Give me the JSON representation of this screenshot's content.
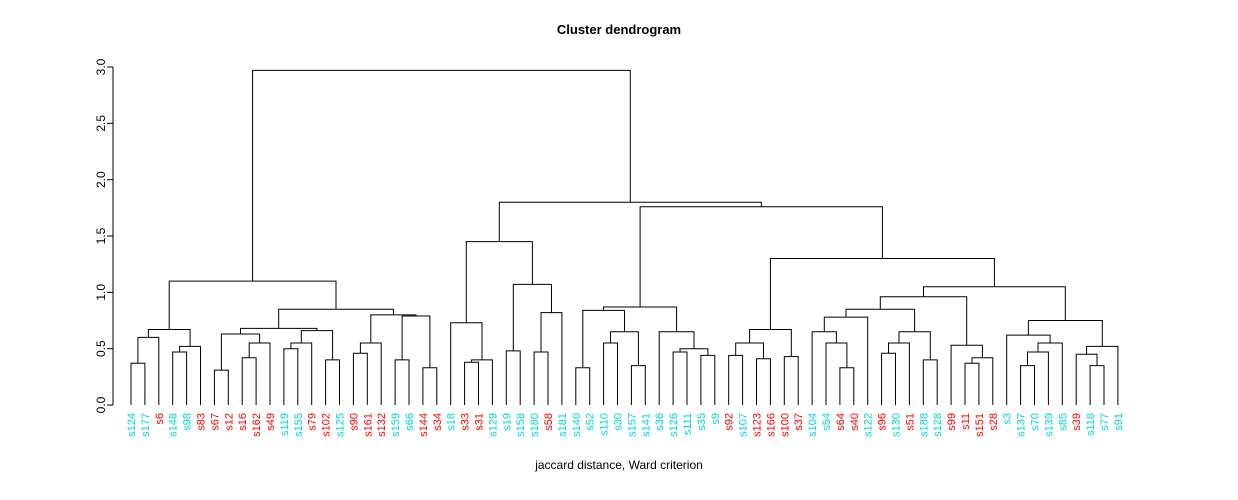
{
  "chart_data": {
    "type": "dendrogram",
    "title": "Cluster dendrogram",
    "xlabel": "jaccard distance, Ward criterion",
    "ylim": [
      0,
      3.0
    ],
    "yticks": [
      0.0,
      0.5,
      1.0,
      1.5,
      2.0,
      2.5,
      3.0
    ],
    "grid": false,
    "line_color": "#000000",
    "leaf_label_colors": {
      "cyan": "#00d5d5",
      "red": "#ff0000"
    },
    "n_leaves": 72,
    "leaves": [
      {
        "label": "s124",
        "color": "cyan"
      },
      {
        "label": "s177",
        "color": "cyan"
      },
      {
        "label": "s6",
        "color": "red"
      },
      {
        "label": "s148",
        "color": "cyan"
      },
      {
        "label": "s98",
        "color": "cyan"
      },
      {
        "label": "s83",
        "color": "red"
      },
      {
        "label": "s67",
        "color": "red"
      },
      {
        "label": "s12",
        "color": "red"
      },
      {
        "label": "s16",
        "color": "red"
      },
      {
        "label": "s162",
        "color": "red"
      },
      {
        "label": "s49",
        "color": "red"
      },
      {
        "label": "s119",
        "color": "cyan"
      },
      {
        "label": "s155",
        "color": "cyan"
      },
      {
        "label": "s79",
        "color": "red"
      },
      {
        "label": "s102",
        "color": "red"
      },
      {
        "label": "s125",
        "color": "cyan"
      },
      {
        "label": "s90",
        "color": "red"
      },
      {
        "label": "s161",
        "color": "red"
      },
      {
        "label": "s132",
        "color": "red"
      },
      {
        "label": "s159",
        "color": "cyan"
      },
      {
        "label": "s66",
        "color": "cyan"
      },
      {
        "label": "s144",
        "color": "red"
      },
      {
        "label": "s34",
        "color": "red"
      },
      {
        "label": "s18",
        "color": "cyan"
      },
      {
        "label": "s33",
        "color": "red"
      },
      {
        "label": "s31",
        "color": "red"
      },
      {
        "label": "s129",
        "color": "cyan"
      },
      {
        "label": "s19",
        "color": "cyan"
      },
      {
        "label": "s158",
        "color": "cyan"
      },
      {
        "label": "s180",
        "color": "cyan"
      },
      {
        "label": "s58",
        "color": "red"
      },
      {
        "label": "s181",
        "color": "cyan"
      },
      {
        "label": "s140",
        "color": "cyan"
      },
      {
        "label": "s52",
        "color": "cyan"
      },
      {
        "label": "s110",
        "color": "cyan"
      },
      {
        "label": "s30",
        "color": "cyan"
      },
      {
        "label": "s157",
        "color": "cyan"
      },
      {
        "label": "s141",
        "color": "cyan"
      },
      {
        "label": "s36",
        "color": "cyan"
      },
      {
        "label": "s126",
        "color": "cyan"
      },
      {
        "label": "s111",
        "color": "cyan"
      },
      {
        "label": "s35",
        "color": "cyan"
      },
      {
        "label": "s9",
        "color": "cyan"
      },
      {
        "label": "s92",
        "color": "red"
      },
      {
        "label": "s107",
        "color": "cyan"
      },
      {
        "label": "s123",
        "color": "red"
      },
      {
        "label": "s166",
        "color": "red"
      },
      {
        "label": "s100",
        "color": "red"
      },
      {
        "label": "s37",
        "color": "red"
      },
      {
        "label": "s104",
        "color": "cyan"
      },
      {
        "label": "s54",
        "color": "cyan"
      },
      {
        "label": "s64",
        "color": "red"
      },
      {
        "label": "s40",
        "color": "red"
      },
      {
        "label": "s122",
        "color": "cyan"
      },
      {
        "label": "s96",
        "color": "red"
      },
      {
        "label": "s130",
        "color": "cyan"
      },
      {
        "label": "s51",
        "color": "red"
      },
      {
        "label": "s188",
        "color": "cyan"
      },
      {
        "label": "s128",
        "color": "cyan"
      },
      {
        "label": "s99",
        "color": "red"
      },
      {
        "label": "s11",
        "color": "red"
      },
      {
        "label": "s151",
        "color": "red"
      },
      {
        "label": "s28",
        "color": "red"
      },
      {
        "label": "s3",
        "color": "cyan"
      },
      {
        "label": "s137",
        "color": "cyan"
      },
      {
        "label": "s70",
        "color": "cyan"
      },
      {
        "label": "s139",
        "color": "cyan"
      },
      {
        "label": "s85",
        "color": "cyan"
      },
      {
        "label": "s39",
        "color": "red"
      },
      {
        "label": "s118",
        "color": "cyan"
      },
      {
        "label": "s77",
        "color": "cyan"
      },
      {
        "label": "s91",
        "color": "cyan"
      }
    ],
    "tree": {
      "h": 2.97,
      "c": [
        {
          "h": 1.1,
          "c": [
            {
              "h": 0.67,
              "c": [
                {
                  "h": 0.6,
                  "c": [
                    {
                      "h": 0.37,
                      "c": [
                        0,
                        1
                      ]
                    },
                    2
                  ]
                },
                {
                  "h": 0.52,
                  "c": [
                    {
                      "h": 0.47,
                      "c": [
                        3,
                        4
                      ]
                    },
                    5
                  ]
                }
              ]
            },
            {
              "h": 0.85,
              "c": [
                {
                  "h": 0.68,
                  "c": [
                    {
                      "h": 0.63,
                      "c": [
                        {
                          "h": 0.31,
                          "c": [
                            6,
                            7
                          ]
                        },
                        {
                          "h": 0.55,
                          "c": [
                            {
                              "h": 0.42,
                              "c": [
                                8,
                                9
                              ]
                            },
                            10
                          ]
                        }
                      ]
                    },
                    {
                      "h": 0.66,
                      "c": [
                        {
                          "h": 0.55,
                          "c": [
                            {
                              "h": 0.5,
                              "c": [
                                11,
                                12
                              ]
                            },
                            13
                          ]
                        },
                        {
                          "h": 0.4,
                          "c": [
                            14,
                            15
                          ]
                        }
                      ]
                    }
                  ]
                },
                {
                  "h": 0.8,
                  "c": [
                    {
                      "h": 0.55,
                      "c": [
                        {
                          "h": 0.46,
                          "c": [
                            16,
                            17
                          ]
                        },
                        18
                      ]
                    },
                    {
                      "h": 0.79,
                      "c": [
                        {
                          "h": 0.4,
                          "c": [
                            19,
                            20
                          ]
                        },
                        {
                          "h": 0.33,
                          "c": [
                            21,
                            22
                          ]
                        }
                      ]
                    }
                  ]
                }
              ]
            }
          ]
        },
        {
          "h": 1.8,
          "c": [
            {
              "h": 1.45,
              "c": [
                {
                  "h": 0.73,
                  "c": [
                    23,
                    {
                      "h": 0.4,
                      "c": [
                        {
                          "h": 0.38,
                          "c": [
                            24,
                            25
                          ]
                        },
                        26
                      ]
                    }
                  ]
                },
                {
                  "h": 1.07,
                  "c": [
                    {
                      "h": 0.48,
                      "c": [
                        27,
                        28
                      ]
                    },
                    {
                      "h": 0.82,
                      "c": [
                        {
                          "h": 0.47,
                          "c": [
                            29,
                            30
                          ]
                        },
                        31
                      ]
                    }
                  ]
                }
              ]
            },
            {
              "h": 1.76,
              "c": [
                {
                  "h": 0.87,
                  "c": [
                    {
                      "h": 0.84,
                      "c": [
                        {
                          "h": 0.33,
                          "c": [
                            32,
                            33
                          ]
                        },
                        {
                          "h": 0.65,
                          "c": [
                            {
                              "h": 0.55,
                              "c": [
                                34,
                                35
                              ]
                            },
                            {
                              "h": 0.35,
                              "c": [
                                36,
                                37
                              ]
                            }
                          ]
                        }
                      ]
                    },
                    {
                      "h": 0.65,
                      "c": [
                        38,
                        {
                          "h": 0.5,
                          "c": [
                            {
                              "h": 0.47,
                              "c": [
                                39,
                                40
                              ]
                            },
                            {
                              "h": 0.44,
                              "c": [
                                41,
                                42
                              ]
                            }
                          ]
                        }
                      ]
                    }
                  ]
                },
                {
                  "h": 1.3,
                  "c": [
                    {
                      "h": 0.67,
                      "c": [
                        {
                          "h": 0.55,
                          "c": [
                            {
                              "h": 0.44,
                              "c": [
                                43,
                                44
                              ]
                            },
                            {
                              "h": 0.41,
                              "c": [
                                45,
                                46
                              ]
                            }
                          ]
                        },
                        {
                          "h": 0.43,
                          "c": [
                            47,
                            48
                          ]
                        }
                      ]
                    },
                    {
                      "h": 1.05,
                      "c": [
                        {
                          "h": 0.96,
                          "c": [
                            {
                              "h": 0.85,
                              "c": [
                                {
                                  "h": 0.78,
                                  "c": [
                                    {
                                      "h": 0.65,
                                      "c": [
                                        49,
                                        {
                                          "h": 0.55,
                                          "c": [
                                            50,
                                            {
                                              "h": 0.33,
                                              "c": [
                                                51,
                                                52
                                              ]
                                            }
                                          ]
                                        }
                                      ]
                                    },
                                    53
                                  ]
                                },
                                {
                                  "h": 0.65,
                                  "c": [
                                    {
                                      "h": 0.55,
                                      "c": [
                                        {
                                          "h": 0.46,
                                          "c": [
                                            54,
                                            55
                                          ]
                                        },
                                        56
                                      ]
                                    },
                                    {
                                      "h": 0.4,
                                      "c": [
                                        57,
                                        58
                                      ]
                                    }
                                  ]
                                }
                              ]
                            },
                            {
                              "h": 0.53,
                              "c": [
                                59,
                                {
                                  "h": 0.42,
                                  "c": [
                                    {
                                      "h": 0.37,
                                      "c": [
                                        60,
                                        61
                                      ]
                                    },
                                    62
                                  ]
                                }
                              ]
                            }
                          ]
                        },
                        {
                          "h": 0.75,
                          "c": [
                            {
                              "h": 0.62,
                              "c": [
                                63,
                                {
                                  "h": 0.55,
                                  "c": [
                                    {
                                      "h": 0.47,
                                      "c": [
                                        {
                                          "h": 0.35,
                                          "c": [
                                            64,
                                            65
                                          ]
                                        },
                                        66
                                      ]
                                    },
                                    67
                                  ]
                                }
                              ]
                            },
                            {
                              "h": 0.52,
                              "c": [
                                {
                                  "h": 0.45,
                                  "c": [
                                    68,
                                    {
                                      "h": 0.35,
                                      "c": [
                                        69,
                                        70
                                      ]
                                    }
                                  ]
                                },
                                71
                              ]
                            }
                          ]
                        }
                      ]
                    }
                  ]
                }
              ]
            }
          ]
        }
      ]
    }
  }
}
